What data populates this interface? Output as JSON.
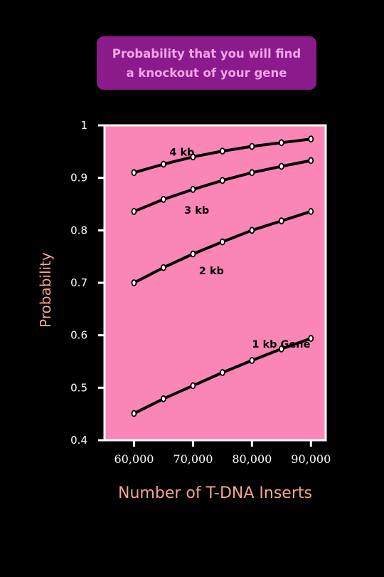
{
  "title_lines": [
    "Probability that you will find",
    "a knockout of your gene"
  ],
  "colors": {
    "background": "#000000",
    "title_box": "#8b1a8b",
    "title_text": "#f3a6e8",
    "plot_area": "#f986b6",
    "axis_label": "#f4a48c",
    "line": "#000000",
    "marker_fill": "#ffffff"
  },
  "chart_data": {
    "type": "line",
    "xlabel": "Number of T-DNA Inserts",
    "ylabel": "Probability",
    "xlim": [
      55000,
      92500
    ],
    "ylim": [
      0.4,
      1.0
    ],
    "x_ticks": [
      60000,
      70000,
      80000,
      90000
    ],
    "x_tick_labels": [
      "60,000",
      "70,000",
      "80,000",
      "90,000"
    ],
    "y_ticks": [
      0.4,
      0.5,
      0.6,
      0.7,
      0.8,
      0.9,
      1.0
    ],
    "y_tick_labels": [
      "0.4",
      "0.5",
      "0.6",
      "0.7",
      "0.8",
      "0.9",
      "1"
    ],
    "x": [
      60000,
      65000,
      70000,
      75000,
      80000,
      85000,
      90000
    ],
    "series": [
      {
        "name": "4 kb",
        "values": [
          0.91,
          0.926,
          0.94,
          0.951,
          0.96,
          0.967,
          0.974
        ]
      },
      {
        "name": "3 kb",
        "values": [
          0.836,
          0.859,
          0.878,
          0.895,
          0.91,
          0.922,
          0.933
        ]
      },
      {
        "name": "2 kb",
        "values": [
          0.7,
          0.729,
          0.755,
          0.778,
          0.8,
          0.818,
          0.836
        ]
      },
      {
        "name": "1 kb Gene",
        "values": [
          0.451,
          0.479,
          0.504,
          0.529,
          0.552,
          0.574,
          0.594
        ]
      }
    ],
    "grid": false,
    "legend": "inline labels near each line"
  }
}
